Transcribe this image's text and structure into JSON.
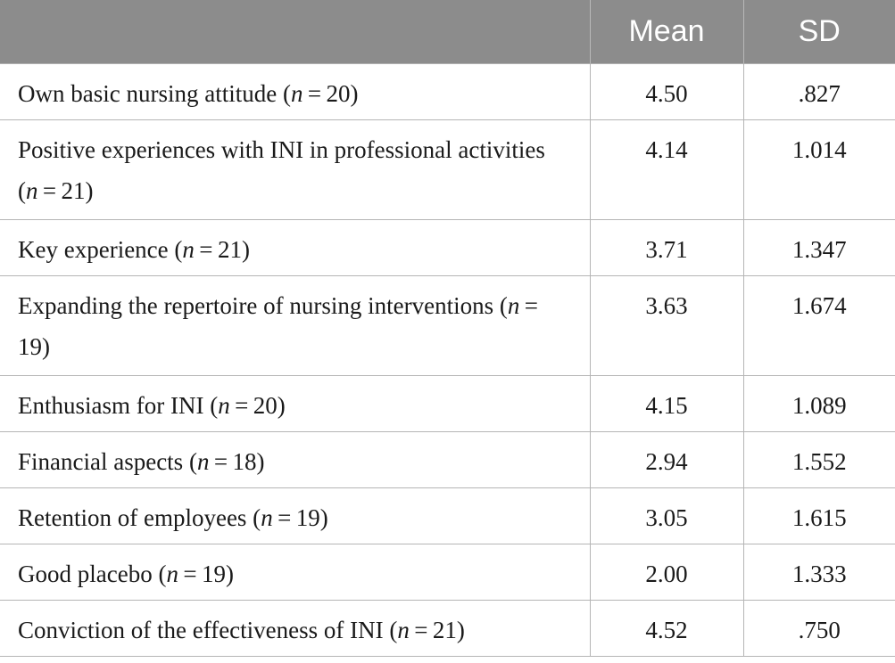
{
  "table": {
    "headers": [
      "",
      "Mean",
      "SD"
    ],
    "rows": [
      {
        "label": "Own basic nursing attitude (",
        "n": "20",
        "mean": "4.50",
        "sd": ".827"
      },
      {
        "label": "Positive experiences with INI in professional activities (",
        "n": "21",
        "mean": "4.14",
        "sd": "1.014"
      },
      {
        "label": "Key experience (",
        "n": "21",
        "mean": "3.71",
        "sd": "1.347"
      },
      {
        "label": "Expanding the repertoire of nursing interventions (",
        "n": "19",
        "mean": "3.63",
        "sd": "1.674"
      },
      {
        "label": "Enthusiasm for INI (",
        "n": "20",
        "mean": "4.15",
        "sd": "1.089"
      },
      {
        "label": "Financial aspects (",
        "n": "18",
        "mean": "2.94",
        "sd": "1.552"
      },
      {
        "label": "Retention of employees (",
        "n": "19",
        "mean": "3.05",
        "sd": "1.615"
      },
      {
        "label": "Good placebo (",
        "n": "19",
        "mean": "2.00",
        "sd": "1.333"
      },
      {
        "label": "Conviction of the effectiveness of INI (",
        "n": "21",
        "mean": "4.52",
        "sd": ".750"
      }
    ],
    "n_symbol": "n",
    "equals": " = ",
    "close_paren": ")"
  }
}
